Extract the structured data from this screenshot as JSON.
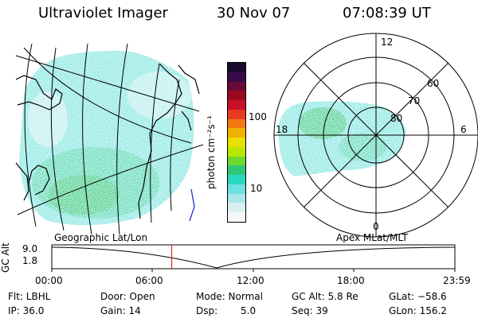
{
  "header": {
    "instrument": "Ultraviolet Imager",
    "date": "30 Nov 07",
    "time": "07:08:39 UT"
  },
  "colorbar": {
    "label": "photon cm⁻²s⁻¹",
    "ticks": [
      "100",
      "10"
    ],
    "colors": [
      "#1a0a2e",
      "#3a0a4a",
      "#6a0a3a",
      "#9a0a1e",
      "#c8102a",
      "#e83a1e",
      "#f07a10",
      "#f0b000",
      "#e8e000",
      "#b8e800",
      "#6ed830",
      "#30c878",
      "#2ad8c0",
      "#6ee0e0",
      "#a8e8e8",
      "#d8f0f0",
      "#f4f8f8"
    ]
  },
  "polar": {
    "mlt_labels": [
      "12",
      "18",
      "6",
      "0"
    ],
    "lat_labels": [
      "60",
      "70",
      "80"
    ]
  },
  "timeline": {
    "left_label": "Geographic Lat/Lon",
    "right_label": "Apex  MLat/MLT",
    "axis_label": "GC Alt",
    "y_ticks": [
      "9.0",
      "1.8"
    ],
    "x_ticks": [
      "00:00",
      "06:00",
      "12:00",
      "18:00",
      "23:59"
    ],
    "marker_hour": 7.14,
    "marker_color": "#e8261a"
  },
  "info": {
    "flt": "Flt: LBHL",
    "ip": "IP: 36.0",
    "door": "Door: Open",
    "gain": "Gain: 14",
    "mode": "Mode: Normal",
    "dsp_label": "Dsp:",
    "dsp_value": "5.0",
    "gc_alt": "GC Alt: 5.8 Re",
    "seq": "Seq: 39",
    "glat": "GLat: −58.6",
    "glon": "GLon: 156.2"
  }
}
